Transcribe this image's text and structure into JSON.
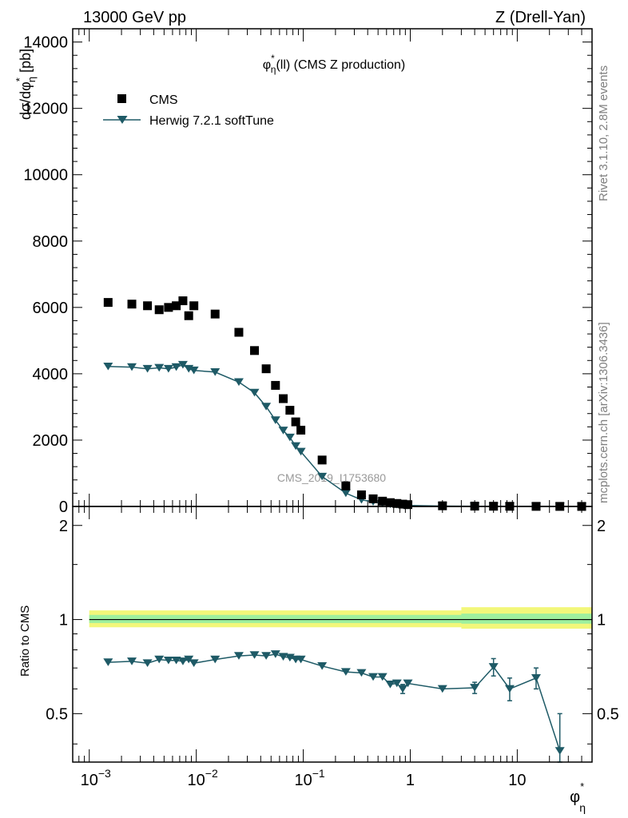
{
  "header": {
    "energy_label": "13000 GeV pp",
    "process_label": "Z (Drell-Yan)"
  },
  "side_text": {
    "rivet": "Rivet 3.1.10,  2.8M events",
    "mcplots": "mcplots.cern.ch [arXiv:1306.3436]"
  },
  "colors": {
    "data": "#000000",
    "mc": "#1e5a66",
    "band_outer": "#f2f77a",
    "band_inner": "#9ef09e",
    "watermark": "#999999"
  },
  "chart_data": [
    {
      "type": "scatter",
      "panel": "main",
      "title": "φη*(ll) (CMS Z production)",
      "title_base": "φ",
      "title_sub": "η",
      "title_sup": "*",
      "title_rest": "(ll) (CMS Z production)",
      "ylabel": "dσ/dφη* [pb]",
      "ylabel_parts": {
        "a": "dσ/dφ",
        "sub": "η",
        "sup": "*",
        "b": " [pb]"
      },
      "xscale": "log",
      "xlim": [
        0.0007,
        50
      ],
      "ylim": [
        0,
        14400
      ],
      "yticks": [
        0,
        2000,
        4000,
        6000,
        8000,
        10000,
        12000,
        14000
      ],
      "ytick_labels": [
        "0",
        "2000",
        "4000",
        "6000",
        "8000",
        "10000",
        "12000",
        "14000"
      ],
      "analysis_id": "CMS_2019_I1753680",
      "legend": [
        {
          "name": "CMS",
          "marker": "square"
        },
        {
          "name": "Herwig 7.2.1 softTune",
          "marker": "triangle-down"
        }
      ],
      "series": [
        {
          "name": "CMS",
          "x": [
            0.0015,
            0.0025,
            0.0035,
            0.0045,
            0.0055,
            0.0065,
            0.0075,
            0.0085,
            0.0095,
            0.015,
            0.025,
            0.035,
            0.045,
            0.055,
            0.065,
            0.075,
            0.085,
            0.095,
            0.15,
            0.25,
            0.35,
            0.45,
            0.55,
            0.65,
            0.75,
            0.85,
            0.95,
            2.0,
            4.0,
            6.0,
            8.5,
            15.0,
            25.0,
            40.0
          ],
          "values": [
            6150,
            6100,
            6050,
            5930,
            6000,
            6050,
            6200,
            5750,
            6050,
            5800,
            5250,
            4700,
            4150,
            3650,
            3250,
            2900,
            2550,
            2300,
            1400,
            620,
            350,
            230,
            160,
            115,
            90,
            70,
            55,
            20,
            10,
            7,
            5,
            3,
            2,
            1
          ]
        },
        {
          "name": "Herwig 7.2.1 softTune",
          "x": [
            0.0015,
            0.0025,
            0.0035,
            0.0045,
            0.0055,
            0.0065,
            0.0075,
            0.0085,
            0.0095,
            0.015,
            0.025,
            0.035,
            0.045,
            0.055,
            0.065,
            0.075,
            0.085,
            0.095,
            0.15,
            0.25,
            0.35,
            0.45,
            0.55,
            0.65,
            0.75,
            0.85,
            0.95,
            2.0,
            4.0,
            6.0,
            8.5,
            15.0,
            25.0,
            40.0
          ],
          "values": [
            4220,
            4200,
            4150,
            4180,
            4150,
            4200,
            4270,
            4150,
            4100,
            4050,
            3750,
            3430,
            3010,
            2600,
            2290,
            2080,
            1820,
            1650,
            900,
            400,
            200,
            140,
            95,
            65,
            55,
            40,
            32,
            12,
            6,
            5,
            3,
            2,
            1,
            0.5
          ]
        }
      ]
    },
    {
      "type": "line",
      "panel": "ratio",
      "ylabel": "Ratio to CMS",
      "xlabel": "φη*",
      "xlabel_parts": {
        "a": "φ",
        "sub": "η",
        "sup": "*"
      },
      "xscale": "log",
      "xlim": [
        0.0007,
        50
      ],
      "ylim": [
        0.35,
        2.3
      ],
      "yticks": [
        0.5,
        1,
        2
      ],
      "ytick_labels": [
        "0.5",
        "1",
        "2"
      ],
      "xticks": [
        0.001,
        0.01,
        0.1,
        1,
        10
      ],
      "xtick_labels": [
        {
          "base": "10",
          "exp": "−3"
        },
        {
          "base": "10",
          "exp": "−2"
        },
        {
          "base": "10",
          "exp": "−1"
        },
        {
          "base": "1",
          "exp": ""
        },
        {
          "base": "10",
          "exp": ""
        }
      ],
      "band": {
        "x": [
          0.001,
          3.0,
          3.0,
          50
        ],
        "outer_lo": [
          0.945,
          0.945,
          0.935,
          0.935
        ],
        "outer_hi": [
          1.07,
          1.07,
          1.095,
          1.095
        ],
        "inner_lo": [
          0.975,
          0.975,
          0.97,
          0.97
        ],
        "inner_hi": [
          1.035,
          1.035,
          1.045,
          1.045
        ]
      },
      "series": [
        {
          "name": "Herwig 7.2.1 softTune",
          "x": [
            0.0015,
            0.0025,
            0.0035,
            0.0045,
            0.0055,
            0.0065,
            0.0075,
            0.0085,
            0.0095,
            0.015,
            0.025,
            0.035,
            0.045,
            0.055,
            0.065,
            0.075,
            0.085,
            0.095,
            0.15,
            0.25,
            0.35,
            0.45,
            0.55,
            0.65,
            0.75,
            0.85,
            0.95,
            2.0,
            4.0,
            6.0,
            8.5,
            15.0,
            25.0
          ],
          "values": [
            0.73,
            0.735,
            0.725,
            0.745,
            0.74,
            0.74,
            0.735,
            0.745,
            0.725,
            0.745,
            0.765,
            0.77,
            0.765,
            0.775,
            0.76,
            0.755,
            0.745,
            0.745,
            0.71,
            0.68,
            0.675,
            0.655,
            0.655,
            0.62,
            0.625,
            0.6,
            0.625,
            0.6,
            0.605,
            0.705,
            0.6,
            0.65,
            0.38
          ],
          "err": [
            0,
            0,
            0,
            0,
            0,
            0,
            0,
            0,
            0,
            0,
            0,
            0,
            0,
            0,
            0,
            0,
            0,
            0,
            0,
            0,
            0,
            0,
            0,
            0,
            0,
            0.02,
            0,
            0,
            0.025,
            0.045,
            0.05,
            0.05,
            0.12
          ]
        }
      ]
    }
  ]
}
